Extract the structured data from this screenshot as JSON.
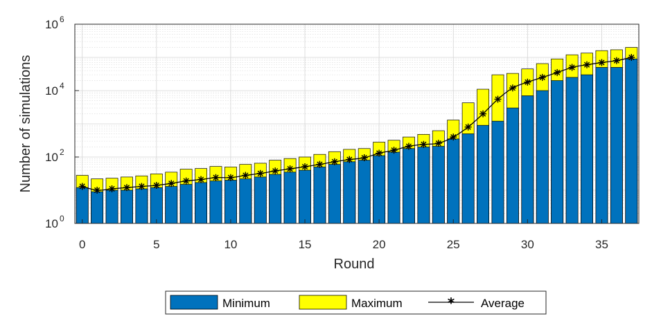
{
  "chart_data": {
    "type": "bar",
    "subtype": "stacked-bar-with-line",
    "title": "",
    "xlabel": "Round",
    "ylabel": "Number of simulations",
    "y_scale": "log",
    "ylim": [
      1,
      1000000
    ],
    "xlim": [
      -0.5,
      37.5
    ],
    "x_ticks": [
      0,
      5,
      10,
      15,
      20,
      25,
      30,
      35
    ],
    "y_ticks": [
      {
        "value": 1,
        "base": "10",
        "exp": "0"
      },
      {
        "value": 100,
        "base": "10",
        "exp": "2"
      },
      {
        "value": 10000,
        "base": "10",
        "exp": "4"
      },
      {
        "value": 1000000,
        "base": "10",
        "exp": "6"
      }
    ],
    "grid": true,
    "legend_position": "bottom-outside",
    "colors": {
      "minimum": "#0072BD",
      "maximum": "#FFFF00",
      "average": "#000000"
    },
    "x": [
      0,
      1,
      2,
      3,
      4,
      5,
      6,
      7,
      8,
      9,
      10,
      11,
      12,
      13,
      14,
      15,
      16,
      17,
      18,
      19,
      20,
      21,
      22,
      23,
      24,
      25,
      26,
      27,
      28,
      29,
      30,
      31,
      32,
      33,
      34,
      35,
      36,
      37
    ],
    "series": [
      {
        "name": "Minimum",
        "values": [
          12,
          9,
          10,
          10,
          11,
          12,
          13,
          15,
          17,
          19,
          20,
          22,
          25,
          30,
          35,
          40,
          50,
          60,
          72,
          80,
          110,
          140,
          180,
          200,
          210,
          350,
          500,
          900,
          1200,
          3000,
          7000,
          10000,
          20000,
          25000,
          30000,
          50000,
          50000,
          90000
        ]
      },
      {
        "name": "Maximum",
        "values": [
          28,
          22,
          23,
          25,
          27,
          31,
          35,
          43,
          45,
          52,
          50,
          60,
          65,
          80,
          90,
          100,
          120,
          145,
          170,
          180,
          280,
          320,
          400,
          480,
          620,
          1300,
          4300,
          11000,
          30000,
          33000,
          45000,
          65000,
          90000,
          120000,
          135000,
          160000,
          170000,
          200000
        ]
      },
      {
        "name": "Average",
        "values": [
          13,
          10,
          11,
          12,
          13,
          14,
          16,
          19,
          21,
          24,
          24,
          28,
          32,
          38,
          44,
          51,
          60,
          72,
          84,
          95,
          130,
          160,
          210,
          240,
          260,
          400,
          800,
          2000,
          5500,
          12000,
          18000,
          25000,
          35000,
          50000,
          60000,
          70000,
          80000,
          100000
        ]
      }
    ]
  }
}
